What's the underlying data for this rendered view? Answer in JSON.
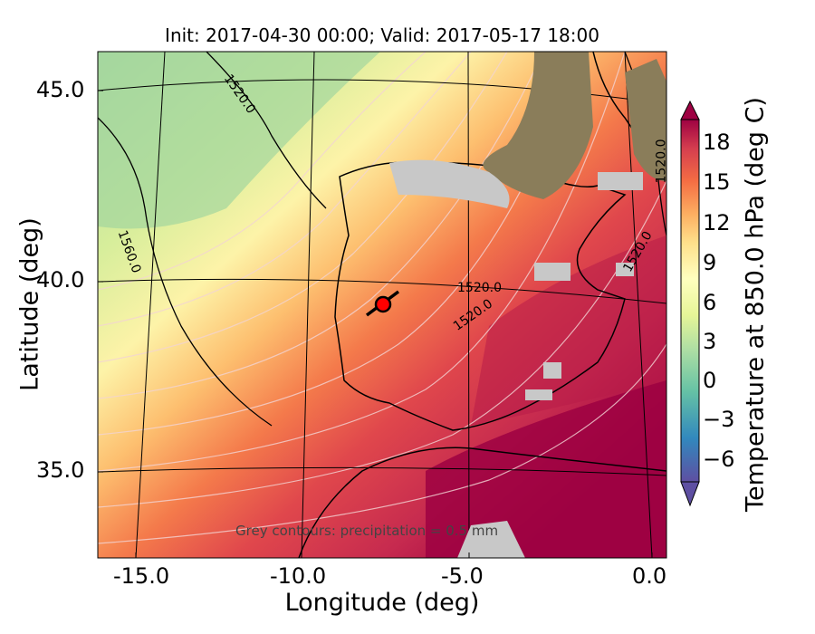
{
  "title": "Init: 2017-04-30 00:00; Valid: 2017-05-17 18:00",
  "xlabel": "Longitude (deg)",
  "ylabel": "Latitude (deg)",
  "colorbar_label": "Temperature at 850.0 hPa (deg C)",
  "x_ticks": [
    "-15.0",
    "-10.0",
    "-5.0",
    "0.0"
  ],
  "y_ticks": [
    "45.0",
    "40.0",
    "35.0"
  ],
  "colorbar_ticks": [
    "18",
    "15",
    "12",
    "9",
    "6",
    "3",
    "0",
    "−3",
    "−6"
  ],
  "note": "Grey contours: precipitation = 0.5 mm",
  "contour_labels": [
    "1520.0",
    "1560.0",
    "1520.0",
    "1520.0",
    "1520.0",
    "1520.0"
  ],
  "colors": {
    "cold": "#5e4fa2",
    "cool": "#3288bd",
    "mild": "#abdda4",
    "neutral": "#ffffbf",
    "warm": "#fdae61",
    "hot": "#d53e4f",
    "hottest": "#9e0142"
  },
  "marker": {
    "name": "location-marker",
    "color": "#ff0000"
  }
}
